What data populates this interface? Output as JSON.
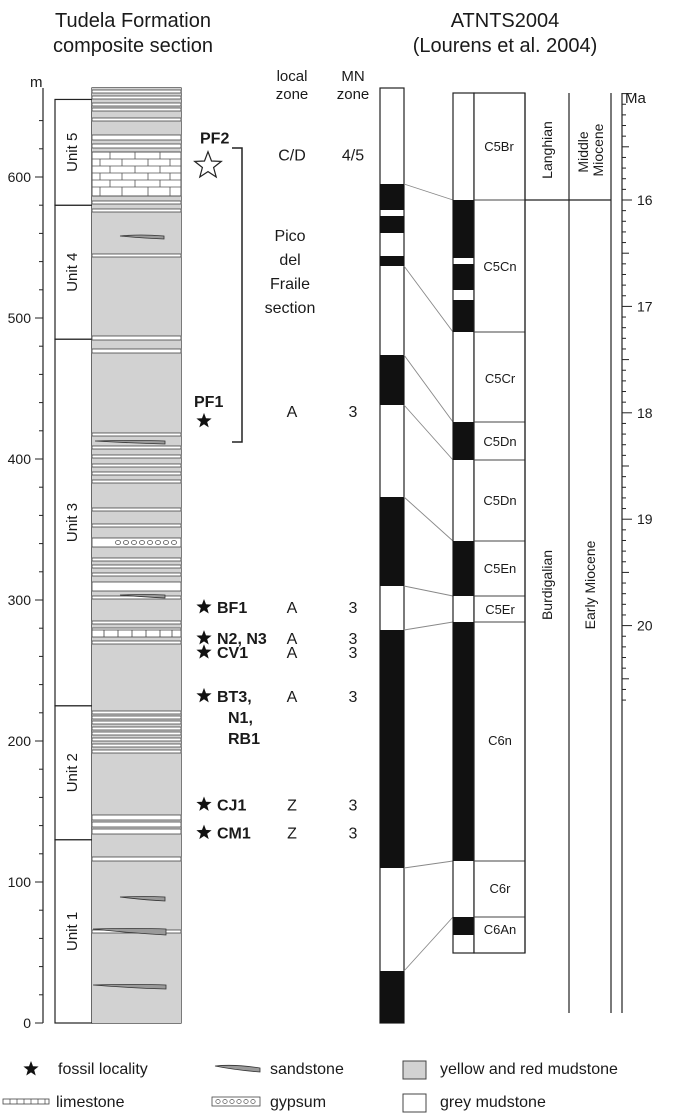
{
  "titles": {
    "formation_line1": "Tudela Formation",
    "formation_line2": "composite section",
    "atnts_line1": "ATNTS2004",
    "atnts_line2": "(Lourens et al. 2004)",
    "meter_unit": "m",
    "local_zone_line1": "local",
    "local_zone_line2": "zone",
    "mn_zone_line1": "MN",
    "mn_zone_line2": "zone",
    "age_unit": "Ma"
  },
  "meter_ticks": [
    "0",
    "100",
    "200",
    "300",
    "400",
    "500",
    "600"
  ],
  "age_ticks": [
    "16",
    "17",
    "18",
    "19",
    "20"
  ],
  "units": [
    {
      "label": "Unit 1",
      "bottom_m": 0,
      "top_m": 130
    },
    {
      "label": "Unit 2",
      "bottom_m": 130,
      "top_m": 225
    },
    {
      "label": "Unit 3",
      "bottom_m": 225,
      "top_m": 485
    },
    {
      "label": "Unit 4",
      "bottom_m": 485,
      "top_m": 580
    },
    {
      "label": "Unit 5",
      "bottom_m": 580,
      "top_m": 655
    }
  ],
  "section_label": [
    "Pico",
    "del",
    "Fraile",
    "section"
  ],
  "localities": [
    {
      "label": [
        "PF2"
      ],
      "m": 608,
      "local_zone": "C/D",
      "mn_zone": "4/5",
      "open": true
    },
    {
      "label": [
        "PF1"
      ],
      "m": 427,
      "local_zone": "A",
      "mn_zone": "3",
      "open": false
    },
    {
      "label": [
        "BF1"
      ],
      "m": 295,
      "local_zone": "A",
      "mn_zone": "3",
      "open": false
    },
    {
      "label": [
        "N2, N3"
      ],
      "m": 273,
      "local_zone": "A",
      "mn_zone": "3",
      "open": false
    },
    {
      "label": [
        "CV1"
      ],
      "m": 263,
      "local_zone": "A",
      "mn_zone": "3",
      "open": false
    },
    {
      "label": [
        "BT3,",
        "N1,",
        "RB1"
      ],
      "m": 232,
      "local_zone": "A",
      "mn_zone": "3",
      "open": false
    },
    {
      "label": [
        "CJ1"
      ],
      "m": 155,
      "local_zone": "Z",
      "mn_zone": "3",
      "open": false
    },
    {
      "label": [
        "CM1"
      ],
      "m": 135,
      "local_zone": "Z",
      "mn_zone": "3",
      "open": false
    }
  ],
  "chrons": [
    "C5Br",
    "C5Cn",
    "C5Cr",
    "C5Dn",
    "C5Dn",
    "C5En",
    "C5Er",
    "C6n",
    "C6r",
    "C6An"
  ],
  "stages": {
    "langhian": "Langhian",
    "burdigalian": "Burdigalian"
  },
  "epochs": {
    "middle_miocene": "Middle Miocene",
    "early_miocene": "Early Miocene"
  },
  "legend": {
    "fossil": "fossil locality",
    "sandstone": "sandstone",
    "mudstone_yr": "yellow and red mudstone",
    "limestone": "limestone",
    "gypsum": "gypsum",
    "mudstone_grey": "grey mudstone"
  },
  "colors": {
    "mudstone_yr": "#d2d2d2",
    "normal_polarity": "#111111",
    "line": "#222222"
  }
}
